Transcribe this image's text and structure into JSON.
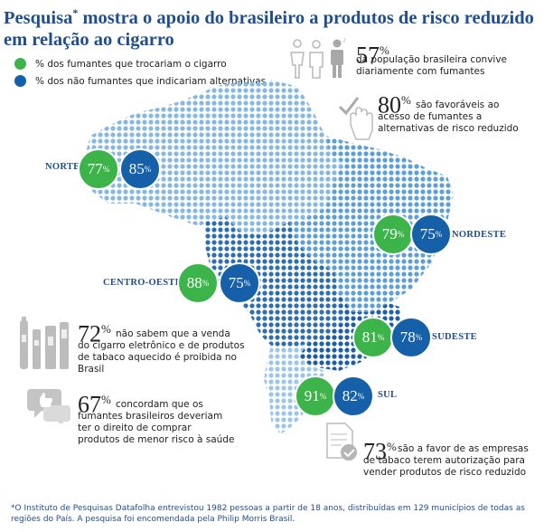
{
  "title": {
    "part1": "Pesquisa",
    "asterisk": "*",
    "part2": " mostra o apoio do brasileiro a produtos de risco reduzido em relação ao cigarro"
  },
  "legend": {
    "smokers": "% dos fumantes que trocariam o cigarro",
    "non_smokers": "% dos não fumantes que indicariam alternativas"
  },
  "colors": {
    "green": "#3cb44a",
    "blue": "#1560a8",
    "title": "#1f4e8c"
  },
  "stats": {
    "s57": {
      "value": "57",
      "pct": "%",
      "text": "da população brasileira convive diariamente com fumantes",
      "icon": "people-icon"
    },
    "s80": {
      "value": "80",
      "pct": "%",
      "text": "são favoráveis ao acesso de fumantes a alternativas de risco reduzido",
      "icon": "hand-check-icon"
    },
    "s72": {
      "value": "72",
      "pct": "%",
      "text": "não sabem que a venda do cigarro eletrônico e de produtos de tabaco aquecido é proibida no Brasil",
      "icon": "devices-icon"
    },
    "s67": {
      "value": "67",
      "pct": "%",
      "text": "concordam que os fumantes brasileiros deveriam ter o direito de comprar produtos de menor risco à saúde",
      "icon": "chat-thumbs-icon"
    },
    "s73": {
      "value": "73",
      "pct": "%",
      "text": "são a favor de as empresas de tabaco terem autorização para vender produtos de risco reduzido",
      "icon": "document-check-icon"
    }
  },
  "regions": {
    "norte": {
      "label": "NORTE",
      "smokers": "77",
      "non_smokers": "85",
      "pct": "%"
    },
    "nordeste": {
      "label": "NORDESTE",
      "smokers": "79",
      "non_smokers": "75",
      "pct": "%"
    },
    "centro_oeste": {
      "label": "CENTRO-OESTE",
      "smokers": "88",
      "non_smokers": "75",
      "pct": "%"
    },
    "sudeste": {
      "label": "SUDESTE",
      "smokers": "81",
      "non_smokers": "78",
      "pct": "%"
    },
    "sul": {
      "label": "SUL",
      "smokers": "91",
      "non_smokers": "82",
      "pct": "%"
    }
  },
  "footnote": "*O Instituto de Pesquisas Datafolha entrevistou 1982 pessoas a partir de 18 anos, distribuídas em 129 municípios de todas as regiões do País. A pesquisa foi encomendada pela Philip Morris Brasil."
}
